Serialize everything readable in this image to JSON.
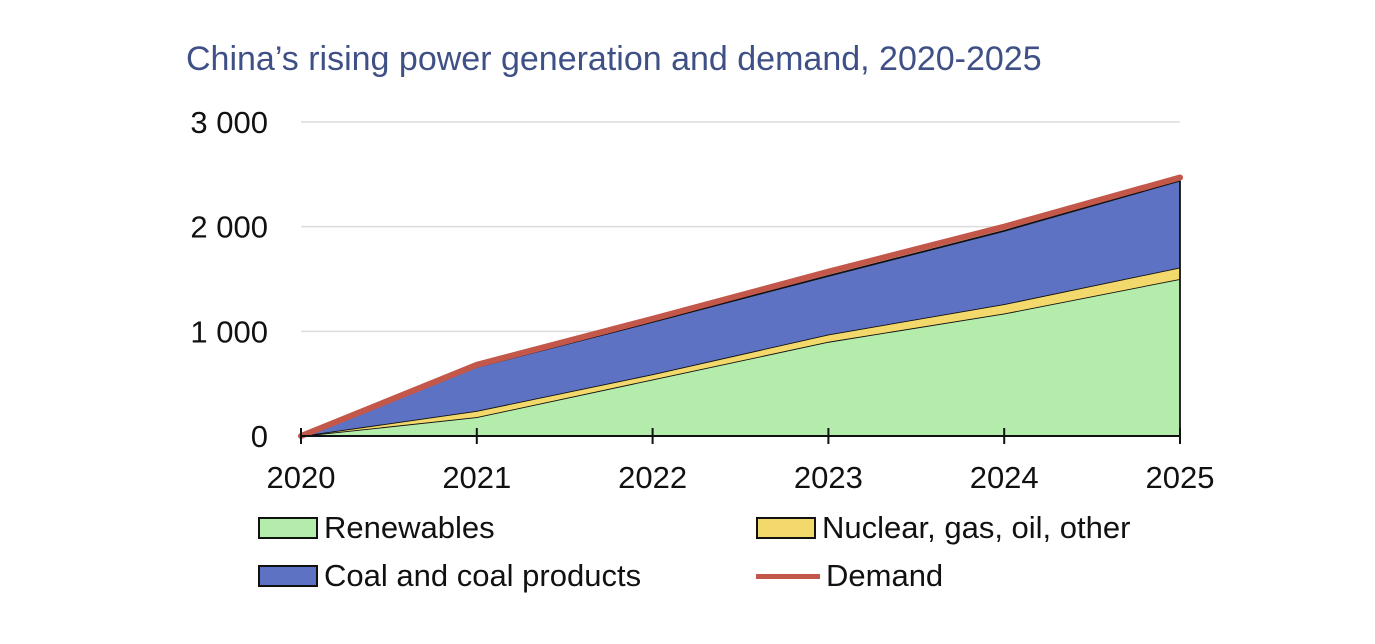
{
  "chart_data": {
    "type": "area",
    "stacked": true,
    "title": "China’s rising power generation and demand, 2020-2025",
    "x": [
      "2020",
      "2021",
      "2022",
      "2023",
      "2024",
      "2025"
    ],
    "ylim": [
      0,
      3000
    ],
    "yticks": [
      0,
      1000,
      2000,
      3000
    ],
    "ytick_labels": [
      "0",
      "1 000",
      "2 000",
      "3 000"
    ],
    "grid": true,
    "legend_position": "bottom",
    "series": [
      {
        "name": "Renewables",
        "kind": "area",
        "values": [
          0,
          180,
          540,
          900,
          1170,
          1500
        ],
        "color": "#b3ecab"
      },
      {
        "name": "Nuclear, gas, oil, other",
        "kind": "area",
        "values": [
          0,
          60,
          50,
          70,
          90,
          110
        ],
        "color": "#f3d86b"
      },
      {
        "name": "Coal and coal products",
        "kind": "area",
        "values": [
          0,
          420,
          500,
          560,
          700,
          830
        ],
        "color": "#5d72c2"
      },
      {
        "name": "Demand",
        "kind": "line",
        "values": [
          0,
          680,
          1120,
          1570,
          2000,
          2470
        ],
        "color": "#c2574a"
      }
    ]
  }
}
